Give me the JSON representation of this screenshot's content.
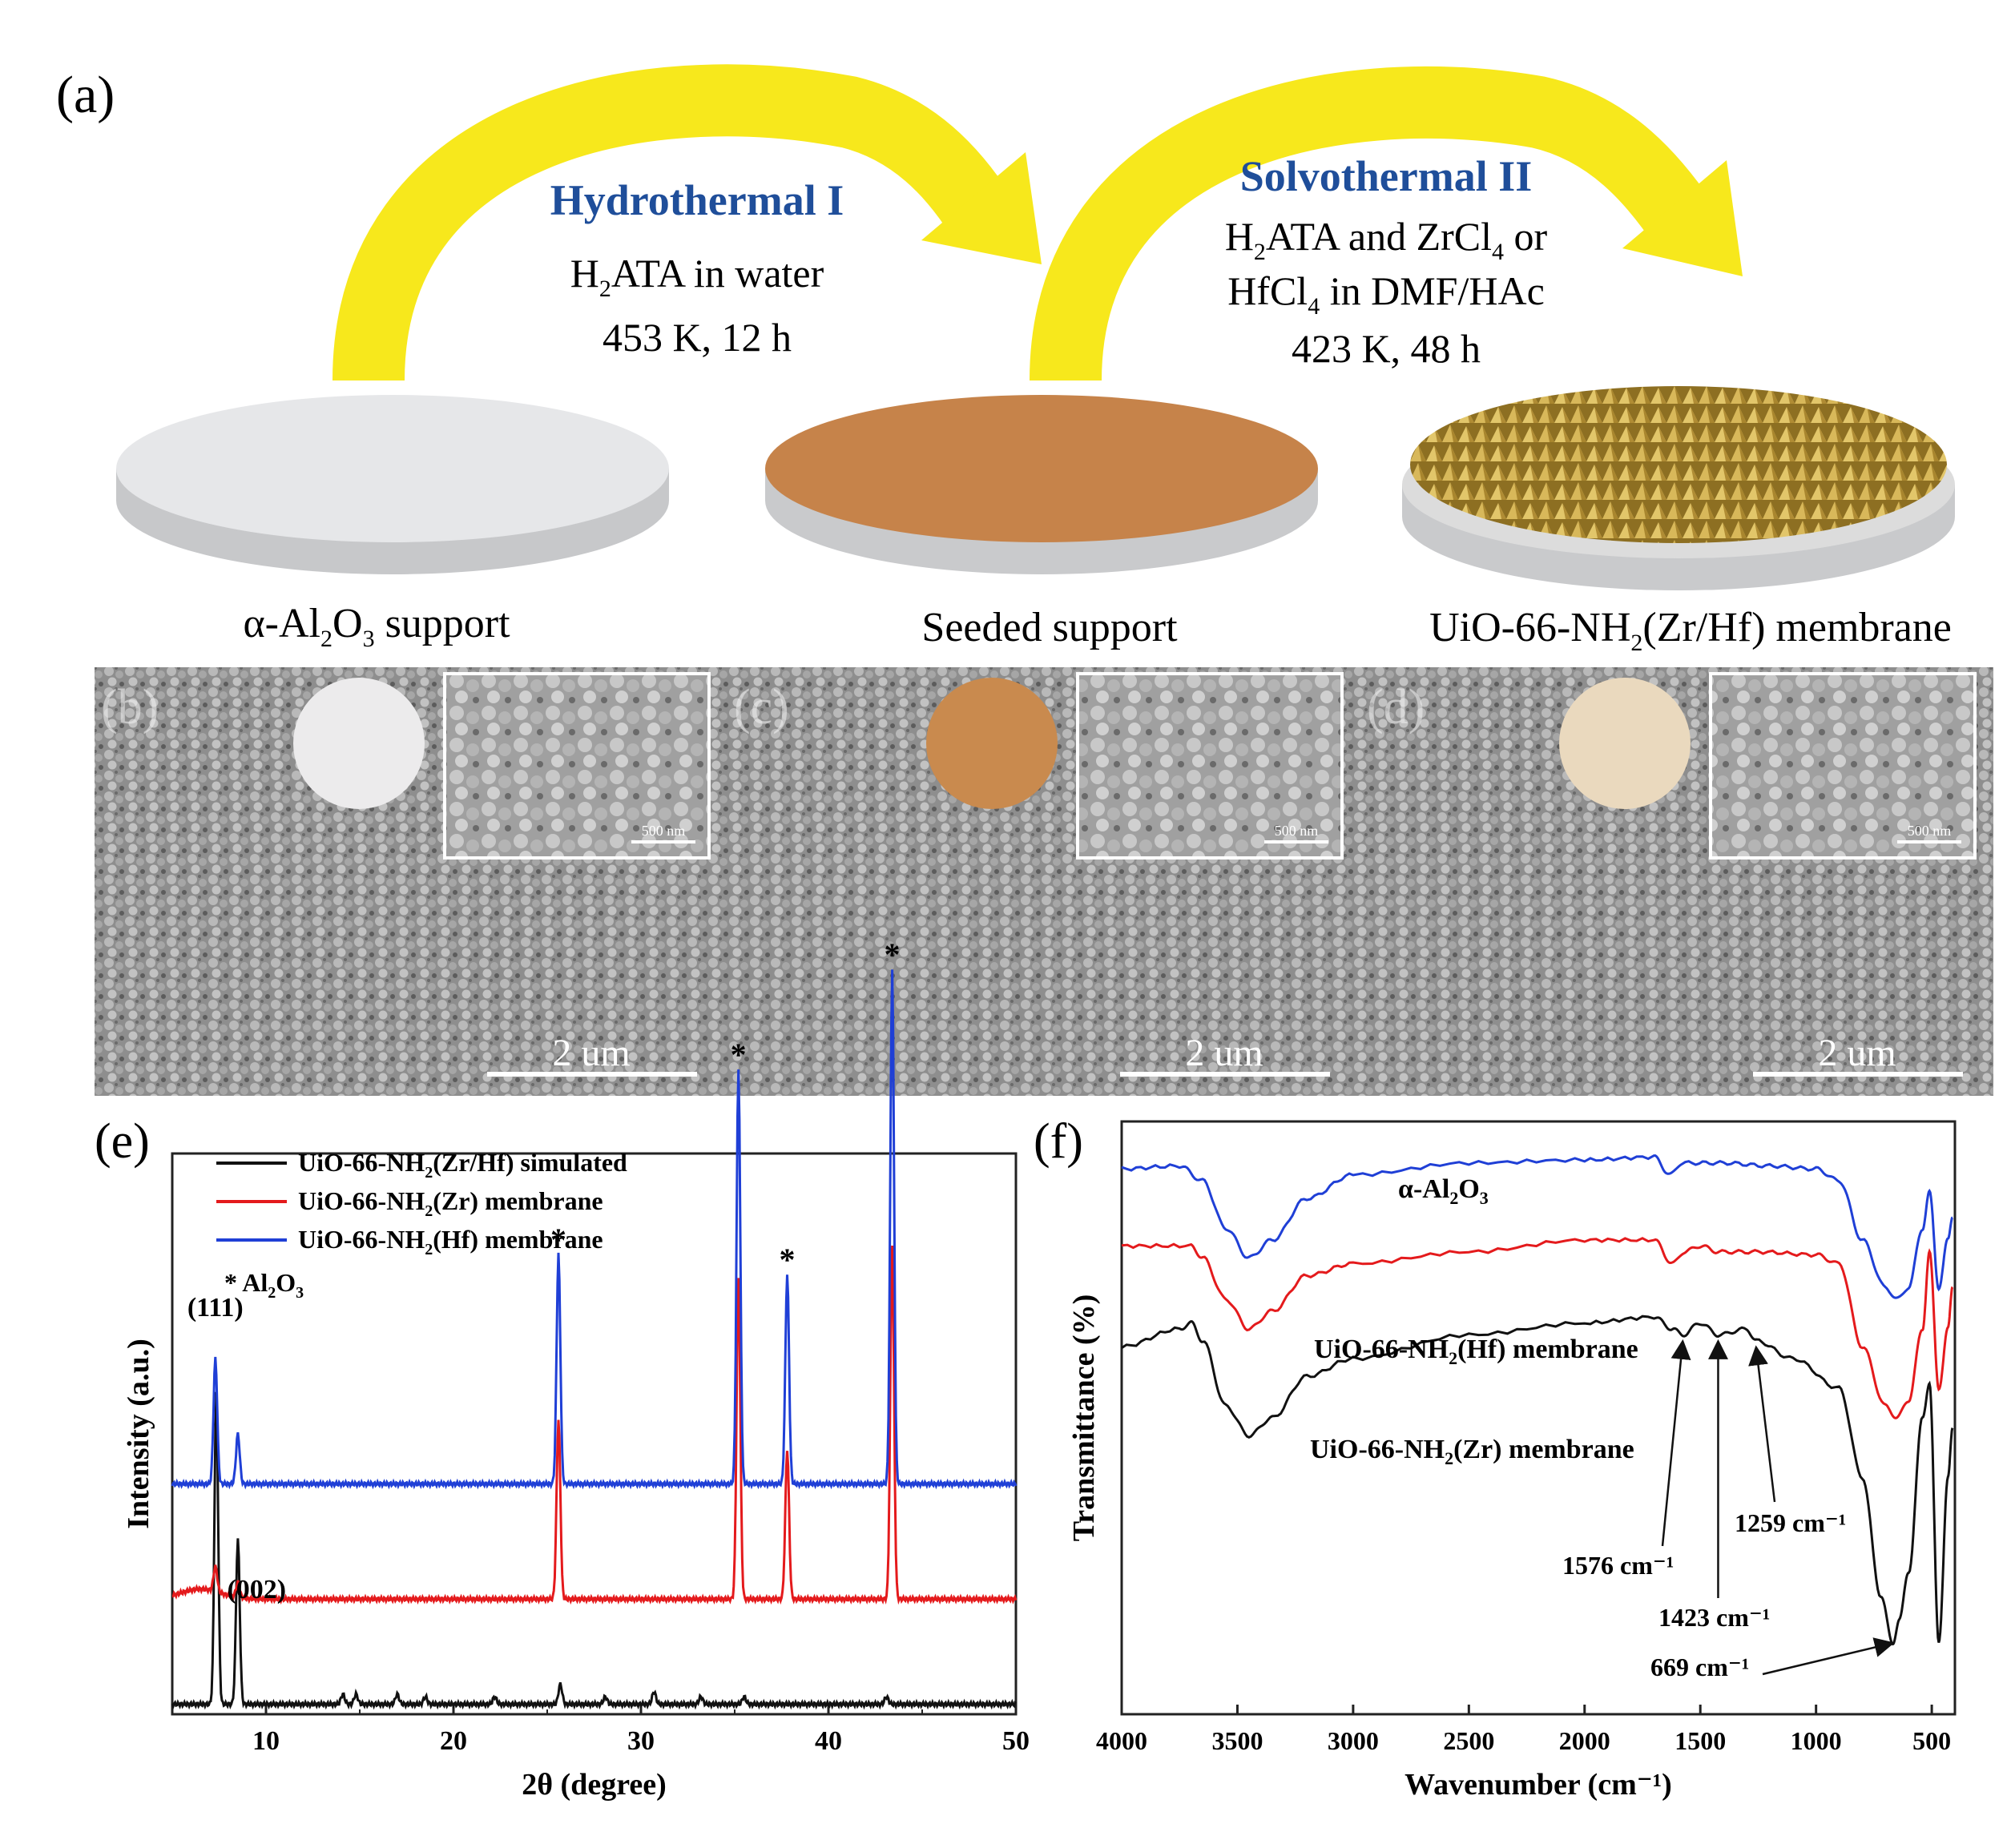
{
  "panel_a": {
    "label": "(a)",
    "step1": {
      "title": "Hydrothermal I",
      "line1_main": "H",
      "line1_sub": "2",
      "line1_rest": "ATA in water",
      "line2": "453 K, 12 h"
    },
    "step2": {
      "title": "Solvothermal II",
      "line1_a": "H",
      "line1_sub": "2",
      "line1_b": "ATA and ZrCl",
      "line1_sub2": "4",
      "line1_c": " or",
      "line2_a": "HfCl",
      "line2_sub": "4",
      "line2_b": " in DMF/HAc",
      "line3": "423 K, 48 h"
    },
    "disc1_label": {
      "a": "α-Al",
      "sub1": "2",
      "b": "O",
      "sub2": "3",
      "c": " support"
    },
    "disc2_label": "Seeded support",
    "disc3_label": {
      "a": "UiO-66-NH",
      "sub": "2",
      "b": "(Zr/Hf) membrane"
    },
    "colors": {
      "title": "#1f4e9a",
      "arrow": "#f7e81c",
      "support": "#e6e7e9",
      "seed": "#c6834a",
      "crystal": "#c8a64a"
    }
  },
  "sem_panels": [
    {
      "label": "(b)",
      "scale": "2 um",
      "inset_scale": "500 nm",
      "dot_color": "#ecebec"
    },
    {
      "label": "(c)",
      "scale": "2 um",
      "inset_scale": "500 nm",
      "dot_color": "#c98a4e"
    },
    {
      "label": "(d)",
      "scale": "2 um",
      "inset_scale": "500 nm",
      "dot_color": "#ead9be"
    }
  ],
  "chart_data": [
    {
      "panel": "(e)",
      "type": "line",
      "xlabel": "2θ (degree)",
      "ylabel": "Intensity (a.u.)",
      "xlim": [
        5,
        50
      ],
      "xticks": [
        10,
        20,
        30,
        40,
        50
      ],
      "legend": [
        {
          "name": "UiO-66-NH2(Zr/Hf) simulated",
          "color": "#111111"
        },
        {
          "name": "UiO-66-NH2(Zr) membrane",
          "color": "#e41a1c"
        },
        {
          "name": "UiO-66-NH2(Hf) membrane",
          "color": "#1f3fd6"
        }
      ],
      "legend_note": "* Al2O3",
      "peak_labels": [
        "(111)",
        "(002)"
      ],
      "series": [
        {
          "name": "UiO-66-NH2(Zr/Hf) simulated",
          "baseline": 0.02,
          "peaks": [
            [
              7.35,
              0.62
            ],
            [
              8.5,
              0.33
            ],
            [
              14.1,
              0.02
            ],
            [
              14.8,
              0.02
            ],
            [
              17.0,
              0.02
            ],
            [
              18.5,
              0.015
            ],
            [
              22.2,
              0.015
            ],
            [
              25.7,
              0.04
            ],
            [
              28.1,
              0.015
            ],
            [
              30.7,
              0.025
            ],
            [
              33.2,
              0.015
            ],
            [
              35.5,
              0.015
            ],
            [
              43.1,
              0.015
            ]
          ]
        },
        {
          "name": "UiO-66-NH2(Zr) membrane",
          "baseline": 0.23,
          "peaks": [
            [
              7.3,
              0.05
            ],
            [
              8.5,
              0.03
            ],
            [
              25.6,
              0.36
            ],
            [
              35.2,
              0.64
            ],
            [
              37.8,
              0.3
            ],
            [
              43.4,
              0.71
            ]
          ]
        },
        {
          "name": "UiO-66-NH2(Hf) membrane",
          "baseline": 0.46,
          "peaks": [
            [
              7.3,
              0.25
            ],
            [
              8.5,
              0.1
            ],
            [
              25.6,
              0.46
            ],
            [
              35.2,
              0.83
            ],
            [
              37.8,
              0.42
            ],
            [
              43.4,
              1.03
            ]
          ]
        }
      ]
    },
    {
      "panel": "(f)",
      "type": "line",
      "xlabel": "Wavenumber  (cm⁻¹)",
      "ylabel": "Transmittance (%)",
      "xlim": [
        4000,
        400
      ],
      "xticks": [
        4000,
        3500,
        3000,
        2500,
        2000,
        1500,
        1000,
        500
      ],
      "curve_labels": [
        "α-Al2O3",
        "UiO-66-NH2(Hf) membrane",
        "UiO-66-NH2(Zr) membrane"
      ],
      "annotations": [
        "1576 cm⁻¹",
        "1423 cm⁻¹",
        "1259 cm⁻¹",
        "669 cm⁻¹"
      ],
      "series": [
        {
          "name": "α-Al2O3",
          "color": "#1f3fd6",
          "points": [
            [
              4000,
              0.92
            ],
            [
              3750,
              0.925
            ],
            [
              3650,
              0.9
            ],
            [
              3550,
              0.82
            ],
            [
              3450,
              0.77
            ],
            [
              3350,
              0.8
            ],
            [
              3200,
              0.87
            ],
            [
              3000,
              0.91
            ],
            [
              2500,
              0.93
            ],
            [
              2000,
              0.935
            ],
            [
              1700,
              0.94
            ],
            [
              1630,
              0.91
            ],
            [
              1580,
              0.93
            ],
            [
              1400,
              0.93
            ],
            [
              1200,
              0.925
            ],
            [
              1000,
              0.92
            ],
            [
              900,
              0.9
            ],
            [
              800,
              0.8
            ],
            [
              700,
              0.72
            ],
            [
              650,
              0.7
            ],
            [
              600,
              0.72
            ],
            [
              540,
              0.82
            ],
            [
              510,
              0.88
            ],
            [
              470,
              0.72
            ],
            [
              430,
              0.8
            ],
            [
              410,
              0.84
            ]
          ]
        },
        {
          "name": "UiO-66-NH2(Hf) membrane",
          "color": "#e41a1c",
          "points": [
            [
              4000,
              0.79
            ],
            [
              3700,
              0.79
            ],
            [
              3650,
              0.77
            ],
            [
              3550,
              0.7
            ],
            [
              3450,
              0.65
            ],
            [
              3350,
              0.68
            ],
            [
              3200,
              0.74
            ],
            [
              3000,
              0.76
            ],
            [
              2500,
              0.78
            ],
            [
              2000,
              0.8
            ],
            [
              1700,
              0.8
            ],
            [
              1620,
              0.76
            ],
            [
              1570,
              0.78
            ],
            [
              1500,
              0.79
            ],
            [
              1420,
              0.78
            ],
            [
              1250,
              0.78
            ],
            [
              1000,
              0.775
            ],
            [
              900,
              0.76
            ],
            [
              800,
              0.62
            ],
            [
              700,
              0.52
            ],
            [
              650,
              0.5
            ],
            [
              600,
              0.53
            ],
            [
              540,
              0.65
            ],
            [
              510,
              0.78
            ],
            [
              470,
              0.55
            ],
            [
              430,
              0.65
            ],
            [
              410,
              0.72
            ]
          ]
        },
        {
          "name": "UiO-66-NH2(Zr) membrane",
          "color": "#111111",
          "points": [
            [
              4000,
              0.62
            ],
            [
              3750,
              0.65
            ],
            [
              3700,
              0.66
            ],
            [
              3650,
              0.63
            ],
            [
              3550,
              0.52
            ],
            [
              3450,
              0.47
            ],
            [
              3350,
              0.5
            ],
            [
              3200,
              0.57
            ],
            [
              3000,
              0.6
            ],
            [
              2500,
              0.64
            ],
            [
              2000,
              0.66
            ],
            [
              1700,
              0.67
            ],
            [
              1620,
              0.65
            ],
            [
              1576,
              0.64
            ],
            [
              1500,
              0.66
            ],
            [
              1423,
              0.64
            ],
            [
              1300,
              0.65
            ],
            [
              1259,
              0.63
            ],
            [
              1100,
              0.6
            ],
            [
              900,
              0.55
            ],
            [
              800,
              0.4
            ],
            [
              720,
              0.2
            ],
            [
              669,
              0.12
            ],
            [
              640,
              0.16
            ],
            [
              600,
              0.24
            ],
            [
              540,
              0.5
            ],
            [
              510,
              0.56
            ],
            [
              470,
              0.12
            ],
            [
              430,
              0.4
            ],
            [
              410,
              0.48
            ]
          ]
        }
      ]
    }
  ]
}
